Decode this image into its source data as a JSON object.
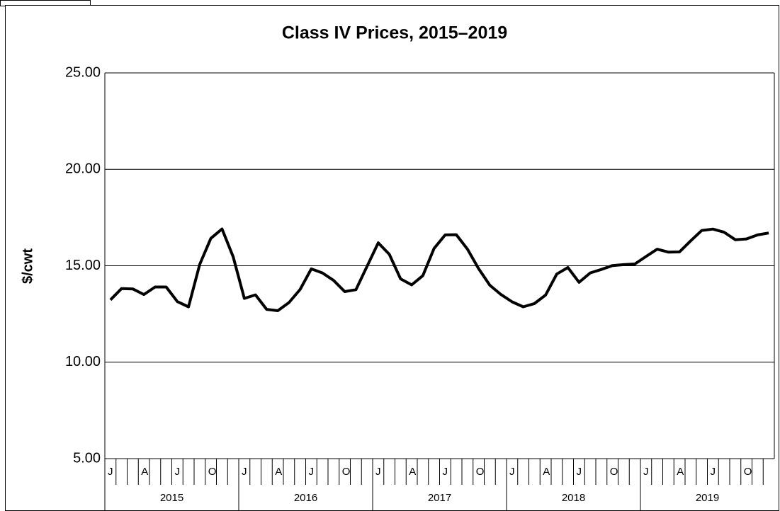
{
  "chart_data": {
    "type": "line",
    "title": "Class IV Prices, 2015–2019",
    "y_label": "$/cwt",
    "categories": [
      "J",
      null,
      null,
      "A",
      null,
      null,
      "J",
      null,
      null,
      "O",
      null,
      null,
      "J",
      null,
      null,
      "A",
      null,
      null,
      "J",
      null,
      null,
      "O",
      null,
      null,
      "J",
      null,
      null,
      "A",
      null,
      null,
      "J",
      null,
      null,
      "O",
      null,
      null,
      "J",
      null,
      null,
      "A",
      null,
      null,
      "J",
      null,
      null,
      "O",
      null,
      null,
      "J",
      null,
      null,
      "A",
      null,
      null,
      "J",
      null,
      null,
      "O",
      null,
      null
    ],
    "year_groups": [
      "2015",
      "2016",
      "2017",
      "2018",
      "2019"
    ],
    "series": [
      {
        "name": null,
        "color": "#000000",
        "values": [
          13.23,
          13.82,
          13.8,
          13.51,
          13.9,
          13.9,
          13.14,
          12.87,
          15.07,
          16.42,
          16.91,
          15.47,
          13.31,
          13.49,
          12.74,
          12.67,
          13.09,
          13.77,
          14.84,
          14.63,
          14.24,
          13.66,
          13.76,
          14.97,
          16.19,
          15.59,
          14.32,
          14.01,
          14.49,
          15.89,
          16.6,
          16.61,
          15.86,
          14.85,
          13.99,
          13.51,
          13.13,
          12.87,
          13.04,
          13.48,
          14.57,
          14.91,
          14.14,
          14.63,
          14.81,
          15.01,
          15.06,
          15.09,
          15.48,
          15.86,
          15.71,
          15.72,
          16.29,
          16.83,
          16.9,
          16.74,
          16.35,
          16.39,
          16.6,
          16.7
        ]
      }
    ],
    "ylim": [
      5,
      25
    ],
    "yticks": [
      {
        "value": 5,
        "label": "5.00"
      },
      {
        "value": 10,
        "label": "10.00"
      },
      {
        "value": 15,
        "label": "15.00"
      },
      {
        "value": 20,
        "label": "20.00"
      },
      {
        "value": 25,
        "label": "25.00"
      }
    ],
    "grid": true
  }
}
